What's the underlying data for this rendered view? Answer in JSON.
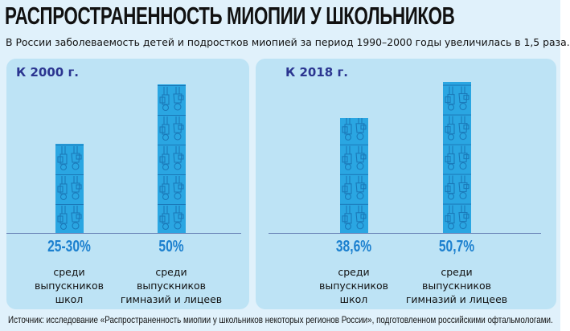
{
  "title": "РАСПРОСТРАНЕННОСТЬ МИОПИИ У ШКОЛЬНИКОВ",
  "subtitle": "В России заболеваемость детей и подростков миопией за период 1990–2000 годы увеличилась в 1,5 раза.",
  "source": "Источник: исследование «Распространенность миопии у школьников некоторых регионов России», подготовленном российскими офтальмологами.",
  "colors": {
    "bar": "#2aa6e2",
    "value_text": "#1c80cf",
    "panel_title": "#2b3590",
    "panel_bg": "#bde3f5"
  },
  "chart_data": [
    {
      "type": "bar",
      "title": "К 2000 г.",
      "categories": [
        "среди выпускников школ",
        "среди выпускников гимназий и лицеев"
      ],
      "values": [
        30,
        50
      ],
      "value_labels": [
        "25-30%",
        "50%"
      ],
      "ylim": [
        0,
        55
      ],
      "unit": "%",
      "bar_fill": "pictogram: boy-and-girl students icons"
    },
    {
      "type": "bar",
      "title": "К 2018 г.",
      "categories": [
        "среди выпускников школ",
        "среди выпускников гимназий и лицеев"
      ],
      "values": [
        38.6,
        50.7
      ],
      "value_labels": [
        "38,6%",
        "50,7%"
      ],
      "ylim": [
        0,
        55
      ],
      "unit": "%",
      "bar_fill": "pictogram: boy-and-girl students icons"
    }
  ],
  "panels": [
    {
      "title": "К 2000 г.",
      "bars": [
        {
          "value_label": "25-30%",
          "label_lines": [
            "среди",
            "выпускников",
            "школ"
          ]
        },
        {
          "value_label": "50%",
          "label_lines": [
            "среди",
            "выпускников",
            "гимназий и лицеев"
          ]
        }
      ]
    },
    {
      "title": "К 2018 г.",
      "bars": [
        {
          "value_label": "38,6%",
          "label_lines": [
            "среди",
            "выпускников",
            "школ"
          ]
        },
        {
          "value_label": "50,7%",
          "label_lines": [
            "среди",
            "выпускников",
            "гимназий и лицеев"
          ]
        }
      ]
    }
  ]
}
